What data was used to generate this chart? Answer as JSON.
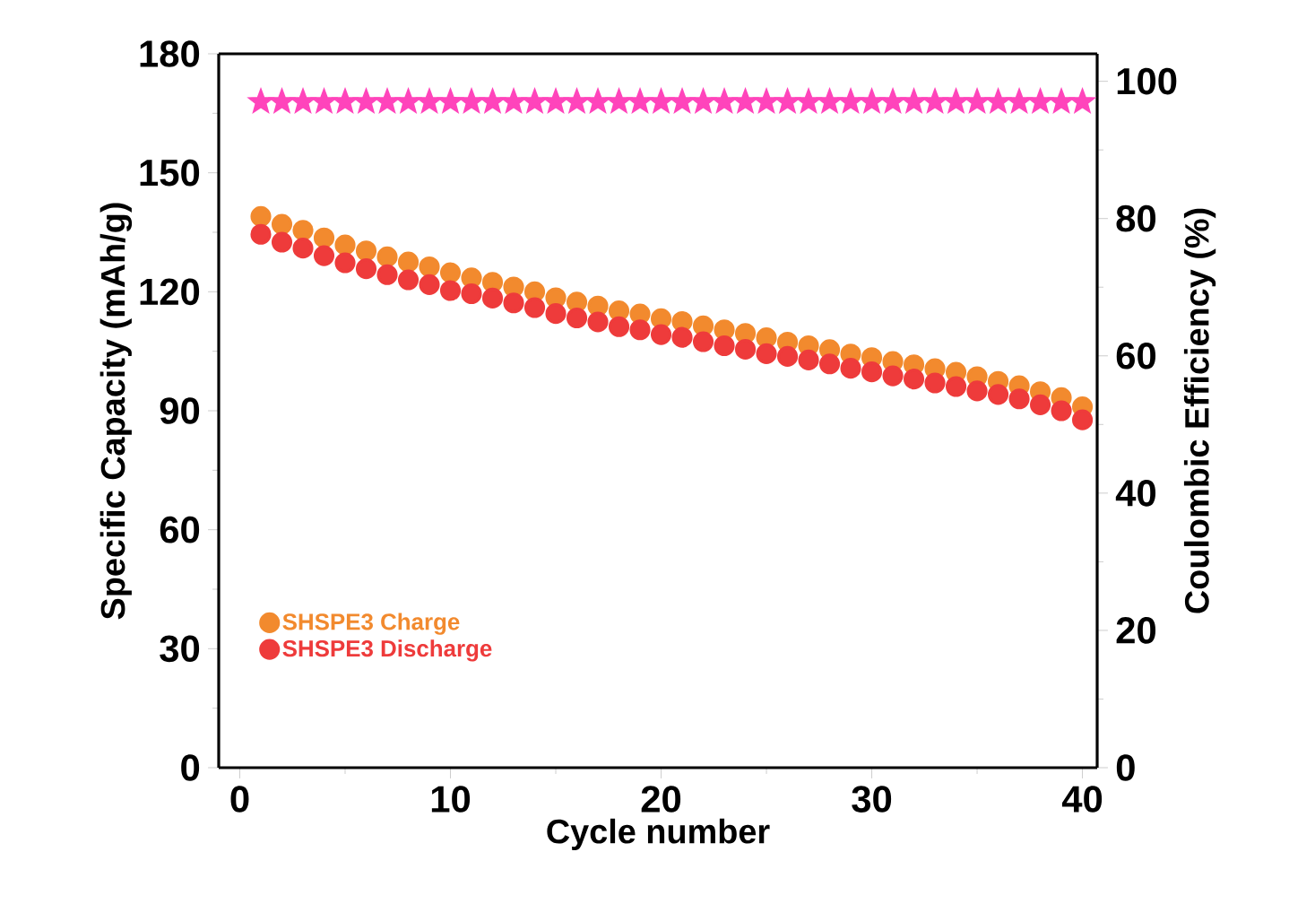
{
  "chart_data": {
    "type": "scatter",
    "xlabel": "Cycle number",
    "ylabel": "Specific Capacity (mAh/g)",
    "y2label": "Coulombic Efficiency (%)",
    "x": [
      1,
      2,
      3,
      4,
      5,
      6,
      7,
      8,
      9,
      10,
      11,
      12,
      13,
      14,
      15,
      16,
      17,
      18,
      19,
      20,
      21,
      22,
      23,
      24,
      25,
      26,
      27,
      28,
      29,
      30,
      31,
      32,
      33,
      34,
      35,
      36,
      37,
      38,
      39,
      40
    ],
    "xlim": [
      -1,
      40.7
    ],
    "xticks": [
      0,
      10,
      20,
      30,
      40
    ],
    "ylim": [
      0,
      180
    ],
    "yticks": [
      0,
      30,
      60,
      90,
      120,
      150,
      180
    ],
    "y2lim": [
      0,
      104
    ],
    "y2ticks": [
      0,
      20,
      40,
      60,
      80,
      100
    ],
    "marker": "circle",
    "legend": "bottom left",
    "grid": false,
    "series": [
      {
        "name": "SHSPE3 Charge",
        "color": "#f28a2e",
        "values": [
          139.0,
          137.0,
          135.5,
          133.6,
          131.8,
          130.3,
          128.8,
          127.5,
          126.3,
          124.8,
          123.5,
          122.4,
          121.2,
          120.0,
          118.5,
          117.4,
          116.4,
          115.2,
          114.4,
          113.2,
          112.5,
          111.4,
          110.4,
          109.5,
          108.4,
          107.3,
          106.4,
          105.4,
          104.3,
          103.4,
          102.4,
          101.6,
          100.6,
          99.7,
          98.6,
          97.4,
          96.3,
          94.8,
          93.3,
          91.0
        ]
      },
      {
        "name": "SHSPE3 Discharge",
        "color": "#ee3b3b",
        "values": [
          134.5,
          132.5,
          131.0,
          129.1,
          127.3,
          125.8,
          124.3,
          123.0,
          121.8,
          120.3,
          119.5,
          118.4,
          117.2,
          116.0,
          114.5,
          113.4,
          112.4,
          111.2,
          110.4,
          109.2,
          108.5,
          107.4,
          106.4,
          105.5,
          104.4,
          103.7,
          102.8,
          101.8,
          100.7,
          99.8,
          98.8,
          98.0,
          97.0,
          96.1,
          95.0,
          94.1,
          93.0,
          91.5,
          90.0,
          87.7
        ]
      },
      {
        "color": "#ff44bb",
        "axis": "y2",
        "marker": "star",
        "values": [
          97,
          97,
          97,
          97,
          97,
          97,
          97,
          97,
          97,
          97,
          97,
          97,
          97,
          97,
          97,
          97,
          97,
          97,
          97,
          97,
          97,
          97,
          97,
          97,
          97,
          97,
          97,
          97,
          97,
          97,
          97,
          97,
          97,
          97,
          97,
          97,
          97,
          97,
          97,
          97
        ]
      }
    ]
  }
}
